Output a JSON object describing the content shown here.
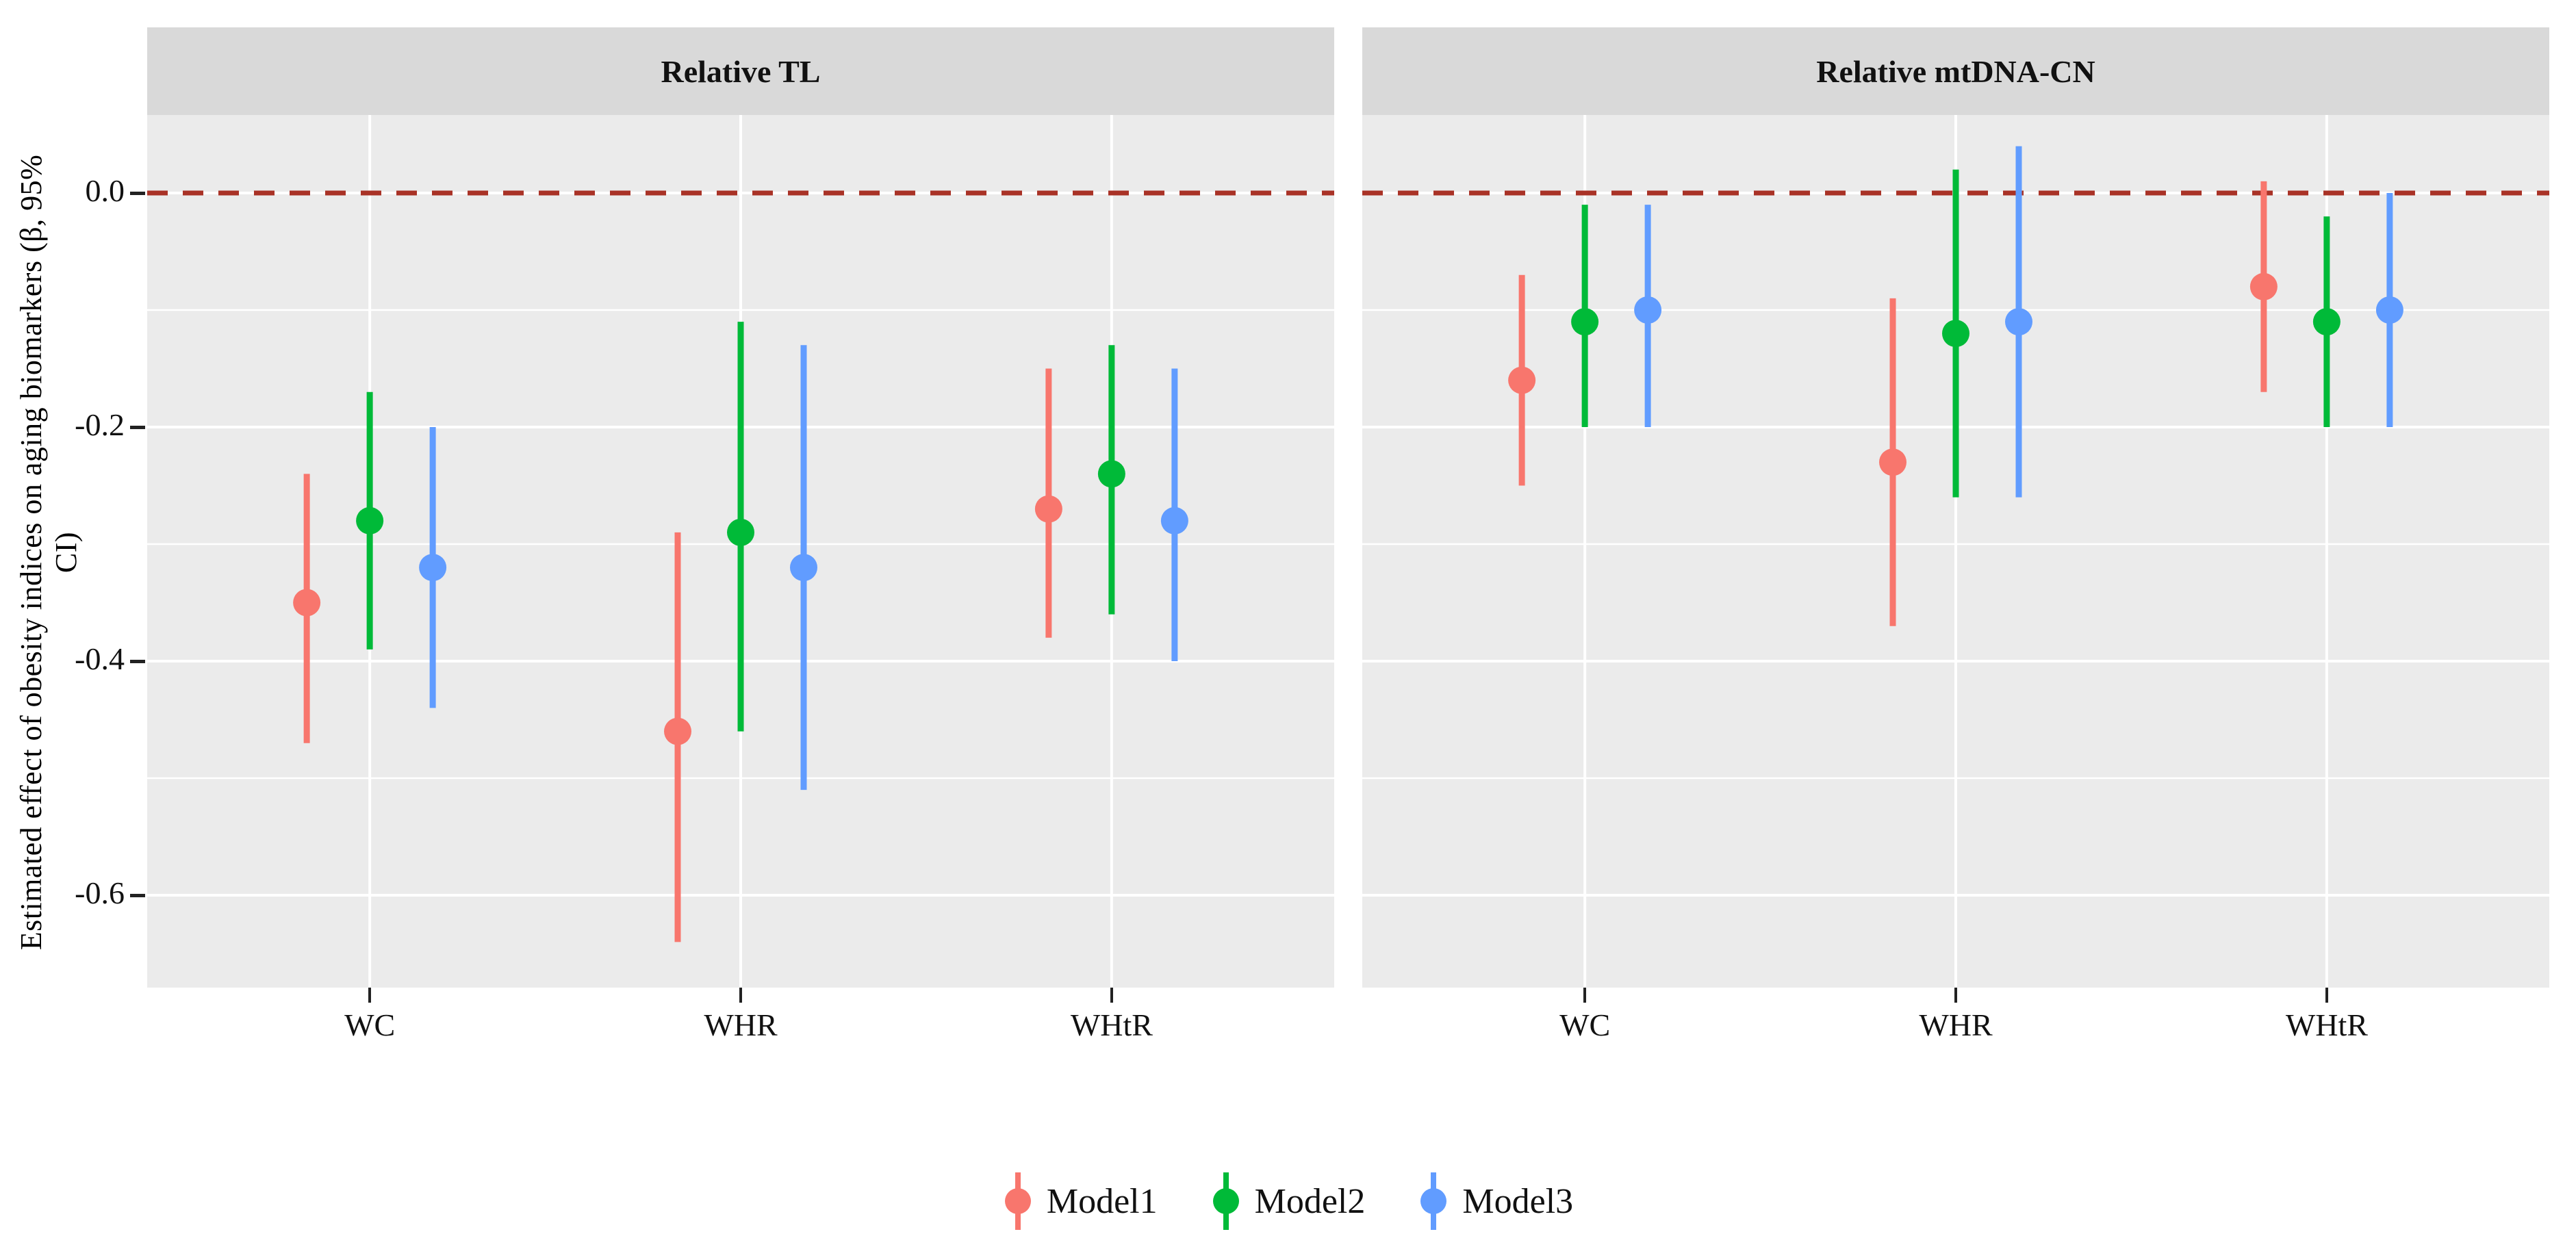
{
  "figure": {
    "y_axis_title": "Estimated effect of obesity indices on aging biomarkers (β, 95% CI)",
    "y_ticks": [
      "0.0",
      "-0.2",
      "-0.4",
      "-0.6"
    ],
    "colors": {
      "panel_background": "#EBEBEB",
      "strip_background": "#D9D9D9",
      "gridline": "#FFFFFF",
      "zero_line": "#A93226",
      "axis_text": "#111111"
    }
  },
  "legend": {
    "items": [
      {
        "label": "Model1",
        "color": "#F8766D"
      },
      {
        "label": "Model2",
        "color": "#00BA38"
      },
      {
        "label": "Model3",
        "color": "#619CFF"
      }
    ]
  },
  "chart_data": {
    "type": "pointrange",
    "title": "",
    "xlabel": "",
    "ylabel": "Estimated effect of obesity indices on aging biomarkers (β, 95% CI)",
    "ylim": [
      -0.68,
      0.07
    ],
    "yticks": [
      0.0,
      -0.2,
      -0.4,
      -0.6
    ],
    "yticks_minor": [
      -0.1,
      -0.3,
      -0.5
    ],
    "zero_line": 0.0,
    "grid": "on",
    "legend_position": "bottom",
    "facets": [
      {
        "title": "Relative TL",
        "categories": [
          "WC",
          "WHR",
          "WHtR"
        ],
        "series": [
          {
            "name": "Model1",
            "color": "#F8766D",
            "points": [
              {
                "x": "WC",
                "beta": -0.35,
                "lo": -0.47,
                "hi": -0.24
              },
              {
                "x": "WHR",
                "beta": -0.46,
                "lo": -0.64,
                "hi": -0.29
              },
              {
                "x": "WHtR",
                "beta": -0.27,
                "lo": -0.38,
                "hi": -0.15
              }
            ]
          },
          {
            "name": "Model2",
            "color": "#00BA38",
            "points": [
              {
                "x": "WC",
                "beta": -0.28,
                "lo": -0.39,
                "hi": -0.17
              },
              {
                "x": "WHR",
                "beta": -0.29,
                "lo": -0.46,
                "hi": -0.11
              },
              {
                "x": "WHtR",
                "beta": -0.24,
                "lo": -0.36,
                "hi": -0.13
              }
            ]
          },
          {
            "name": "Model3",
            "color": "#619CFF",
            "points": [
              {
                "x": "WC",
                "beta": -0.32,
                "lo": -0.44,
                "hi": -0.2
              },
              {
                "x": "WHR",
                "beta": -0.32,
                "lo": -0.51,
                "hi": -0.13
              },
              {
                "x": "WHtR",
                "beta": -0.28,
                "lo": -0.4,
                "hi": -0.15
              }
            ]
          }
        ]
      },
      {
        "title": "Relative mtDNA-CN",
        "categories": [
          "WC",
          "WHR",
          "WHtR"
        ],
        "series": [
          {
            "name": "Model1",
            "color": "#F8766D",
            "points": [
              {
                "x": "WC",
                "beta": -0.16,
                "lo": -0.25,
                "hi": -0.07
              },
              {
                "x": "WHR",
                "beta": -0.23,
                "lo": -0.37,
                "hi": -0.09
              },
              {
                "x": "WHtR",
                "beta": -0.08,
                "lo": -0.17,
                "hi": 0.01
              }
            ]
          },
          {
            "name": "Model2",
            "color": "#00BA38",
            "points": [
              {
                "x": "WC",
                "beta": -0.11,
                "lo": -0.2,
                "hi": -0.01
              },
              {
                "x": "WHR",
                "beta": -0.12,
                "lo": -0.26,
                "hi": 0.02
              },
              {
                "x": "WHtR",
                "beta": -0.11,
                "lo": -0.2,
                "hi": -0.02
              }
            ]
          },
          {
            "name": "Model3",
            "color": "#619CFF",
            "points": [
              {
                "x": "WC",
                "beta": -0.1,
                "lo": -0.2,
                "hi": -0.01
              },
              {
                "x": "WHR",
                "beta": -0.11,
                "lo": -0.26,
                "hi": 0.04
              },
              {
                "x": "WHtR",
                "beta": -0.1,
                "lo": -0.2,
                "hi": 0.0
              }
            ]
          }
        ]
      }
    ]
  }
}
